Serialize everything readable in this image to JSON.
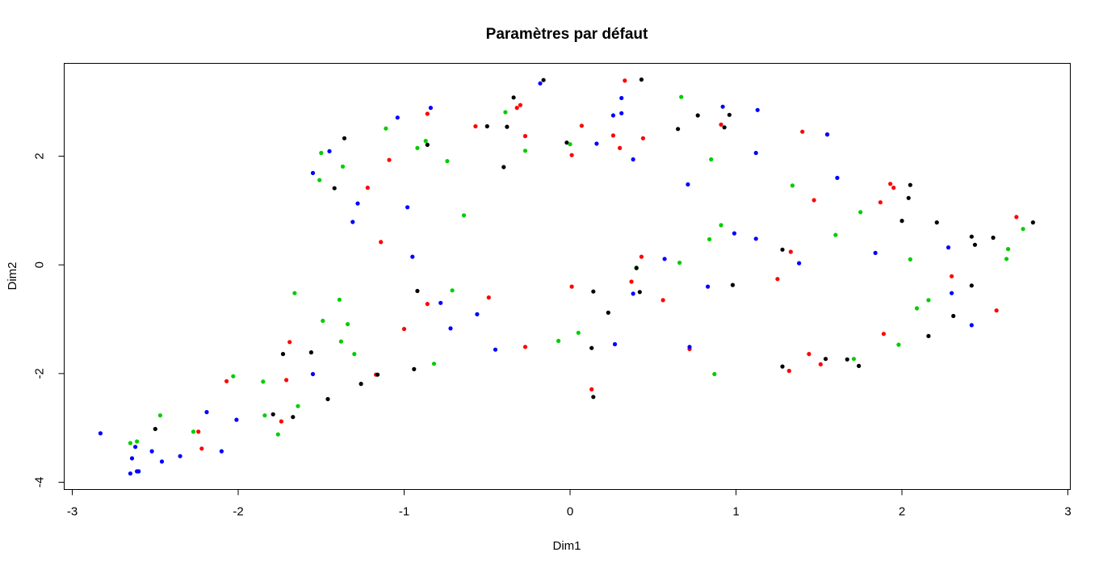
{
  "chart_data": {
    "type": "scatter",
    "title": "Paramètres par défaut",
    "xlabel": "Dim1",
    "ylabel": "Dim2",
    "xlim": [
      -3.0,
      3.0
    ],
    "ylim": [
      -4.0,
      3.4
    ],
    "xticks": [
      "-3",
      "-2",
      "-1",
      "0",
      "1",
      "2",
      "3"
    ],
    "yticks": [
      "-4",
      "-2",
      "0",
      "2"
    ],
    "grid": false,
    "legend": "none",
    "colors": {
      "black": "#000000",
      "red": "#ff0000",
      "green": "#00cd00",
      "blue": "#0000ff"
    },
    "points": [
      {
        "x": -2.83,
        "y": -3.1,
        "color": "blue"
      },
      {
        "x": -2.65,
        "y": -3.28,
        "color": "green"
      },
      {
        "x": -2.64,
        "y": -3.56,
        "color": "blue"
      },
      {
        "x": -2.65,
        "y": -3.84,
        "color": "blue"
      },
      {
        "x": -2.62,
        "y": -3.35,
        "color": "blue"
      },
      {
        "x": -2.61,
        "y": -3.25,
        "color": "green"
      },
      {
        "x": -2.6,
        "y": -3.8,
        "color": "blue"
      },
      {
        "x": -2.61,
        "y": -3.8,
        "color": "blue"
      },
      {
        "x": -2.52,
        "y": -3.43,
        "color": "blue"
      },
      {
        "x": -2.5,
        "y": -3.02,
        "color": "black"
      },
      {
        "x": -2.47,
        "y": -2.77,
        "color": "green"
      },
      {
        "x": -2.46,
        "y": -3.62,
        "color": "blue"
      },
      {
        "x": -2.35,
        "y": -3.52,
        "color": "blue"
      },
      {
        "x": -2.27,
        "y": -3.07,
        "color": "green"
      },
      {
        "x": -2.24,
        "y": -3.07,
        "color": "red"
      },
      {
        "x": -2.22,
        "y": -3.38,
        "color": "red"
      },
      {
        "x": -2.19,
        "y": -2.71,
        "color": "blue"
      },
      {
        "x": -2.1,
        "y": -3.43,
        "color": "blue"
      },
      {
        "x": -2.07,
        "y": -2.14,
        "color": "red"
      },
      {
        "x": -2.03,
        "y": -2.05,
        "color": "green"
      },
      {
        "x": -2.01,
        "y": -2.85,
        "color": "blue"
      },
      {
        "x": -1.85,
        "y": -2.15,
        "color": "green"
      },
      {
        "x": -1.84,
        "y": -2.77,
        "color": "green"
      },
      {
        "x": -1.79,
        "y": -2.75,
        "color": "black"
      },
      {
        "x": -1.76,
        "y": -3.12,
        "color": "green"
      },
      {
        "x": -1.74,
        "y": -2.88,
        "color": "red"
      },
      {
        "x": -1.73,
        "y": -1.64,
        "color": "black"
      },
      {
        "x": -1.71,
        "y": -2.12,
        "color": "red"
      },
      {
        "x": -1.69,
        "y": -1.42,
        "color": "red"
      },
      {
        "x": -1.67,
        "y": -2.8,
        "color": "black"
      },
      {
        "x": -1.66,
        "y": -0.52,
        "color": "green"
      },
      {
        "x": -1.64,
        "y": -2.6,
        "color": "green"
      },
      {
        "x": -1.56,
        "y": -1.61,
        "color": "black"
      },
      {
        "x": -1.55,
        "y": -2.01,
        "color": "blue"
      },
      {
        "x": -1.55,
        "y": 1.69,
        "color": "blue"
      },
      {
        "x": -1.51,
        "y": 1.56,
        "color": "green"
      },
      {
        "x": -1.5,
        "y": 2.06,
        "color": "green"
      },
      {
        "x": -1.49,
        "y": -1.03,
        "color": "green"
      },
      {
        "x": -1.46,
        "y": -2.47,
        "color": "black"
      },
      {
        "x": -1.45,
        "y": 2.09,
        "color": "blue"
      },
      {
        "x": -1.42,
        "y": 1.41,
        "color": "black"
      },
      {
        "x": -1.39,
        "y": -0.64,
        "color": "green"
      },
      {
        "x": -1.38,
        "y": -1.41,
        "color": "green"
      },
      {
        "x": -1.37,
        "y": 1.81,
        "color": "green"
      },
      {
        "x": -1.36,
        "y": 2.33,
        "color": "black"
      },
      {
        "x": -1.34,
        "y": -1.09,
        "color": "green"
      },
      {
        "x": -1.31,
        "y": 0.79,
        "color": "blue"
      },
      {
        "x": -1.3,
        "y": -1.64,
        "color": "green"
      },
      {
        "x": -1.28,
        "y": 1.13,
        "color": "blue"
      },
      {
        "x": -1.26,
        "y": -2.19,
        "color": "black"
      },
      {
        "x": -1.22,
        "y": 1.42,
        "color": "red"
      },
      {
        "x": -1.17,
        "y": -2.02,
        "color": "red"
      },
      {
        "x": -1.16,
        "y": -2.02,
        "color": "black"
      },
      {
        "x": -1.14,
        "y": 0.42,
        "color": "red"
      },
      {
        "x": -1.11,
        "y": 2.51,
        "color": "green"
      },
      {
        "x": -1.09,
        "y": 1.93,
        "color": "red"
      },
      {
        "x": -1.04,
        "y": 2.71,
        "color": "blue"
      },
      {
        "x": -1.0,
        "y": -1.18,
        "color": "red"
      },
      {
        "x": -0.98,
        "y": 1.06,
        "color": "blue"
      },
      {
        "x": -0.95,
        "y": 0.15,
        "color": "blue"
      },
      {
        "x": -0.94,
        "y": -1.92,
        "color": "black"
      },
      {
        "x": -0.92,
        "y": -0.48,
        "color": "black"
      },
      {
        "x": -0.92,
        "y": 2.15,
        "color": "green"
      },
      {
        "x": -0.87,
        "y": 2.28,
        "color": "green"
      },
      {
        "x": -0.86,
        "y": 2.21,
        "color": "black"
      },
      {
        "x": -0.86,
        "y": 2.78,
        "color": "red"
      },
      {
        "x": -0.86,
        "y": -0.72,
        "color": "red"
      },
      {
        "x": -0.84,
        "y": 2.89,
        "color": "blue"
      },
      {
        "x": -0.82,
        "y": -1.82,
        "color": "green"
      },
      {
        "x": -0.78,
        "y": -0.7,
        "color": "blue"
      },
      {
        "x": -0.74,
        "y": 1.91,
        "color": "green"
      },
      {
        "x": -0.72,
        "y": -1.17,
        "color": "blue"
      },
      {
        "x": -0.71,
        "y": -0.47,
        "color": "green"
      },
      {
        "x": -0.64,
        "y": 0.91,
        "color": "green"
      },
      {
        "x": -0.57,
        "y": 2.55,
        "color": "red"
      },
      {
        "x": -0.56,
        "y": -0.91,
        "color": "blue"
      },
      {
        "x": -0.5,
        "y": 2.55,
        "color": "black"
      },
      {
        "x": -0.49,
        "y": -0.6,
        "color": "red"
      },
      {
        "x": -0.45,
        "y": -1.56,
        "color": "blue"
      },
      {
        "x": -0.4,
        "y": 1.8,
        "color": "black"
      },
      {
        "x": -0.39,
        "y": 2.81,
        "color": "green"
      },
      {
        "x": -0.38,
        "y": 2.54,
        "color": "black"
      },
      {
        "x": -0.34,
        "y": 3.08,
        "color": "black"
      },
      {
        "x": -0.32,
        "y": 2.89,
        "color": "red"
      },
      {
        "x": -0.3,
        "y": 2.94,
        "color": "red"
      },
      {
        "x": -0.27,
        "y": 2.37,
        "color": "red"
      },
      {
        "x": -0.27,
        "y": 2.1,
        "color": "green"
      },
      {
        "x": -0.27,
        "y": -1.51,
        "color": "red"
      },
      {
        "x": -0.18,
        "y": 3.34,
        "color": "blue"
      },
      {
        "x": -0.16,
        "y": 3.4,
        "color": "black"
      },
      {
        "x": -0.07,
        "y": -1.4,
        "color": "green"
      },
      {
        "x": -0.02,
        "y": 2.25,
        "color": "black"
      },
      {
        "x": 0.0,
        "y": 2.22,
        "color": "green"
      },
      {
        "x": 0.01,
        "y": 2.02,
        "color": "red"
      },
      {
        "x": 0.01,
        "y": -0.4,
        "color": "red"
      },
      {
        "x": 0.05,
        "y": -1.25,
        "color": "green"
      },
      {
        "x": 0.07,
        "y": 2.56,
        "color": "red"
      },
      {
        "x": 0.13,
        "y": -1.53,
        "color": "black"
      },
      {
        "x": 0.13,
        "y": -2.29,
        "color": "red"
      },
      {
        "x": 0.14,
        "y": -0.49,
        "color": "black"
      },
      {
        "x": 0.14,
        "y": -2.43,
        "color": "black"
      },
      {
        "x": 0.16,
        "y": 2.23,
        "color": "blue"
      },
      {
        "x": 0.23,
        "y": -0.88,
        "color": "black"
      },
      {
        "x": 0.26,
        "y": 2.38,
        "color": "red"
      },
      {
        "x": 0.26,
        "y": 2.75,
        "color": "blue"
      },
      {
        "x": 0.27,
        "y": -1.46,
        "color": "blue"
      },
      {
        "x": 0.3,
        "y": 2.15,
        "color": "red"
      },
      {
        "x": 0.31,
        "y": 2.79,
        "color": "blue"
      },
      {
        "x": 0.31,
        "y": 3.07,
        "color": "blue"
      },
      {
        "x": 0.33,
        "y": 3.39,
        "color": "red"
      },
      {
        "x": 0.37,
        "y": -0.31,
        "color": "red"
      },
      {
        "x": 0.38,
        "y": 1.94,
        "color": "blue"
      },
      {
        "x": 0.38,
        "y": -0.53,
        "color": "blue"
      },
      {
        "x": 0.4,
        "y": -0.05,
        "color": "green"
      },
      {
        "x": 0.4,
        "y": -0.06,
        "color": "black"
      },
      {
        "x": 0.42,
        "y": -0.5,
        "color": "black"
      },
      {
        "x": 0.43,
        "y": 3.41,
        "color": "black"
      },
      {
        "x": 0.43,
        "y": 0.15,
        "color": "red"
      },
      {
        "x": 0.44,
        "y": 2.33,
        "color": "red"
      },
      {
        "x": 0.56,
        "y": -0.65,
        "color": "red"
      },
      {
        "x": 0.57,
        "y": 0.11,
        "color": "blue"
      },
      {
        "x": 0.65,
        "y": 2.5,
        "color": "black"
      },
      {
        "x": 0.66,
        "y": 0.04,
        "color": "green"
      },
      {
        "x": 0.67,
        "y": 3.09,
        "color": "green"
      },
      {
        "x": 0.71,
        "y": 1.48,
        "color": "blue"
      },
      {
        "x": 0.72,
        "y": -1.55,
        "color": "red"
      },
      {
        "x": 0.72,
        "y": -1.51,
        "color": "blue"
      },
      {
        "x": 0.77,
        "y": 2.75,
        "color": "black"
      },
      {
        "x": 0.83,
        "y": -0.4,
        "color": "blue"
      },
      {
        "x": 0.84,
        "y": 0.47,
        "color": "green"
      },
      {
        "x": 0.85,
        "y": 1.94,
        "color": "green"
      },
      {
        "x": 0.87,
        "y": -2.01,
        "color": "green"
      },
      {
        "x": 0.91,
        "y": 2.58,
        "color": "red"
      },
      {
        "x": 0.91,
        "y": 0.73,
        "color": "green"
      },
      {
        "x": 0.92,
        "y": 2.91,
        "color": "blue"
      },
      {
        "x": 0.93,
        "y": 2.53,
        "color": "black"
      },
      {
        "x": 0.96,
        "y": 2.76,
        "color": "black"
      },
      {
        "x": 0.98,
        "y": -0.37,
        "color": "black"
      },
      {
        "x": 0.99,
        "y": 0.58,
        "color": "blue"
      },
      {
        "x": 1.12,
        "y": 0.48,
        "color": "blue"
      },
      {
        "x": 1.12,
        "y": 2.06,
        "color": "blue"
      },
      {
        "x": 1.13,
        "y": 2.85,
        "color": "blue"
      },
      {
        "x": 1.25,
        "y": -0.26,
        "color": "red"
      },
      {
        "x": 1.28,
        "y": 0.28,
        "color": "black"
      },
      {
        "x": 1.28,
        "y": -1.87,
        "color": "black"
      },
      {
        "x": 1.32,
        "y": -1.95,
        "color": "red"
      },
      {
        "x": 1.33,
        "y": 0.24,
        "color": "red"
      },
      {
        "x": 1.34,
        "y": 1.46,
        "color": "green"
      },
      {
        "x": 1.38,
        "y": 0.03,
        "color": "blue"
      },
      {
        "x": 1.4,
        "y": 2.45,
        "color": "red"
      },
      {
        "x": 1.44,
        "y": -1.64,
        "color": "red"
      },
      {
        "x": 1.47,
        "y": 1.19,
        "color": "red"
      },
      {
        "x": 1.51,
        "y": -1.83,
        "color": "red"
      },
      {
        "x": 1.54,
        "y": -1.73,
        "color": "black"
      },
      {
        "x": 1.55,
        "y": 2.4,
        "color": "red"
      },
      {
        "x": 1.55,
        "y": 2.4,
        "color": "blue"
      },
      {
        "x": 1.6,
        "y": 0.55,
        "color": "green"
      },
      {
        "x": 1.61,
        "y": 1.6,
        "color": "blue"
      },
      {
        "x": 1.67,
        "y": -1.74,
        "color": "black"
      },
      {
        "x": 1.71,
        "y": -1.73,
        "color": "green"
      },
      {
        "x": 1.74,
        "y": -1.86,
        "color": "black"
      },
      {
        "x": 1.75,
        "y": 0.97,
        "color": "green"
      },
      {
        "x": 1.84,
        "y": 0.22,
        "color": "blue"
      },
      {
        "x": 1.87,
        "y": 1.15,
        "color": "red"
      },
      {
        "x": 1.89,
        "y": -1.27,
        "color": "red"
      },
      {
        "x": 1.93,
        "y": 1.49,
        "color": "red"
      },
      {
        "x": 1.95,
        "y": 1.42,
        "color": "red"
      },
      {
        "x": 1.98,
        "y": -1.47,
        "color": "green"
      },
      {
        "x": 2.0,
        "y": 0.81,
        "color": "black"
      },
      {
        "x": 2.04,
        "y": 1.23,
        "color": "black"
      },
      {
        "x": 2.05,
        "y": 1.47,
        "color": "black"
      },
      {
        "x": 2.05,
        "y": 0.1,
        "color": "green"
      },
      {
        "x": 2.09,
        "y": -0.8,
        "color": "green"
      },
      {
        "x": 2.16,
        "y": -0.65,
        "color": "green"
      },
      {
        "x": 2.16,
        "y": -1.31,
        "color": "black"
      },
      {
        "x": 2.21,
        "y": 0.78,
        "color": "black"
      },
      {
        "x": 2.28,
        "y": 0.32,
        "color": "blue"
      },
      {
        "x": 2.3,
        "y": -0.21,
        "color": "red"
      },
      {
        "x": 2.3,
        "y": -0.52,
        "color": "blue"
      },
      {
        "x": 2.31,
        "y": -0.94,
        "color": "black"
      },
      {
        "x": 2.42,
        "y": -0.38,
        "color": "black"
      },
      {
        "x": 2.42,
        "y": -1.11,
        "color": "blue"
      },
      {
        "x": 2.42,
        "y": 0.52,
        "color": "black"
      },
      {
        "x": 2.44,
        "y": 0.37,
        "color": "black"
      },
      {
        "x": 2.55,
        "y": 0.5,
        "color": "black"
      },
      {
        "x": 2.57,
        "y": -0.84,
        "color": "red"
      },
      {
        "x": 2.63,
        "y": 0.11,
        "color": "green"
      },
      {
        "x": 2.64,
        "y": 0.29,
        "color": "green"
      },
      {
        "x": 2.69,
        "y": 0.88,
        "color": "red"
      },
      {
        "x": 2.73,
        "y": 0.66,
        "color": "green"
      },
      {
        "x": 2.79,
        "y": 0.78,
        "color": "black"
      }
    ]
  }
}
